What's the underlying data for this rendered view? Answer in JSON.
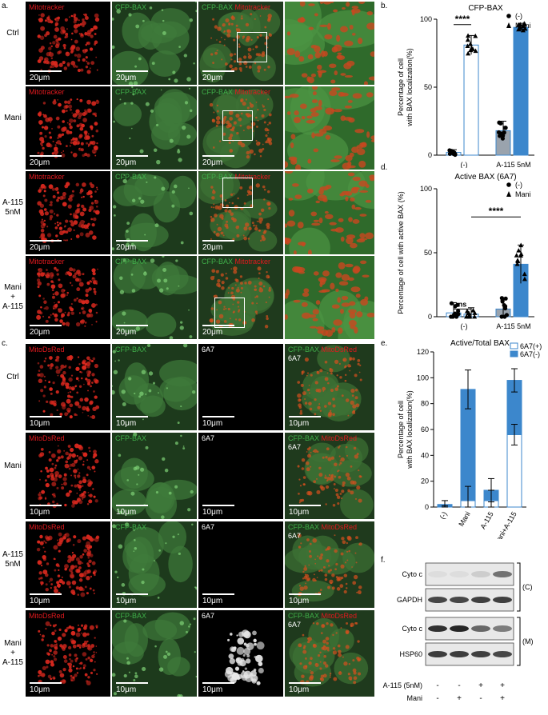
{
  "panels": {
    "a": {
      "label": "a.",
      "rows": [
        "Ctrl",
        "Mani",
        "A-115\n5nM",
        "Mani\n+\nA-115"
      ],
      "channels": {
        "mito": "Mitotracker",
        "bax": "CFP-BAX"
      },
      "scale": "20μm"
    },
    "b": {
      "label": "b.",
      "chart_data": {
        "type": "bar",
        "title": "CFP-BAX",
        "ylabel": "Percentage of cell\nwith BAX localization(%)",
        "ylim": [
          0,
          100
        ],
        "yticks": [
          0,
          50,
          100
        ],
        "categories": [
          "(-)",
          "A-115 5nM"
        ],
        "series": [
          {
            "name": "(-)",
            "marker": "circle",
            "values": [
              2,
              18
            ],
            "err": [
              2,
              7
            ]
          },
          {
            "name": "Mani",
            "marker": "triangle",
            "values": [
              81,
              94
            ],
            "err": [
              7,
              3
            ]
          }
        ],
        "significance": [
          "****",
          "****"
        ]
      }
    },
    "c": {
      "label": "c.",
      "rows": [
        "Ctrl",
        "Mani",
        "A-115\n5nM",
        "Mani\n+\nA-115"
      ],
      "channels": {
        "mito": "MitoDsRed",
        "bax": "CFP-BAX",
        "ab": "6A7"
      },
      "scale": "10μm"
    },
    "d": {
      "label": "d.",
      "chart_data": {
        "type": "bar",
        "title": "Active BAX (6A7)",
        "ylabel": "Percentage of cell with active BAX (%)",
        "ylim": [
          0,
          100
        ],
        "yticks": [
          0,
          50,
          100
        ],
        "categories": [
          "(-)",
          "A-115 5nM"
        ],
        "series": [
          {
            "name": "(-)",
            "marker": "circle",
            "values": [
              3,
              6
            ],
            "err": [
              8,
              9
            ]
          },
          {
            "name": "Mani",
            "marker": "triangle",
            "values": [
              2,
              41
            ],
            "err": [
              5,
              15
            ]
          }
        ],
        "significance": [
          "ns",
          "****"
        ]
      }
    },
    "e": {
      "label": "e.",
      "chart_data": {
        "type": "bar",
        "title": "Active/Total BAX",
        "ylabel": "Percentage of cell\nwith BAX localization(%)",
        "ylim": [
          0,
          120
        ],
        "yticks": [
          0,
          20,
          40,
          60,
          80,
          100,
          120
        ],
        "categories": [
          "(-)",
          "Mani",
          "A-115",
          "Mani+A-115"
        ],
        "series": [
          {
            "name": "6A7(+)",
            "values": [
              0,
              5,
              5,
              56
            ],
            "err": [
              1,
              11,
              8,
              8
            ]
          },
          {
            "name": "6A7(-)",
            "values": [
              2,
              86,
              8,
              42
            ],
            "err": [
              3,
              15,
              9,
              9
            ]
          }
        ]
      }
    },
    "f": {
      "label": "f.",
      "bands": [
        "Cyto c",
        "GAPDH",
        "Cyto c",
        "HSP60"
      ],
      "fractions": [
        "(C)",
        "(M)"
      ],
      "conditions": [
        {
          "name": "A-115 (5nM)",
          "values": [
            "-",
            "-",
            "+",
            "+"
          ]
        },
        {
          "name": "Mani",
          "values": [
            "-",
            "+",
            "-",
            "+"
          ]
        }
      ]
    }
  },
  "colors": {
    "bar_blue": "#3c87cc",
    "red": "#e0191e",
    "green": "#3fae49"
  }
}
